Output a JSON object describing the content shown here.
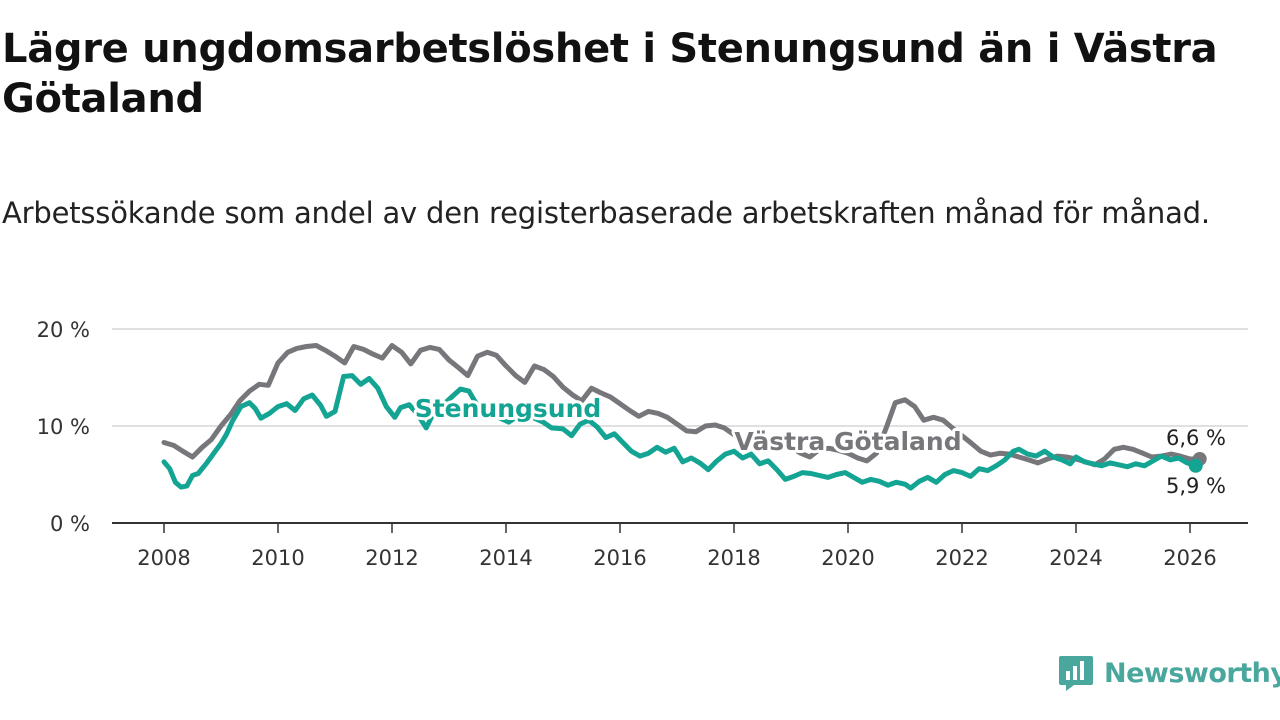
{
  "title": "Lägre ungdomsarbetslöshet i Stenungsund än i Västra Götaland",
  "subtitle": "Arbetssökande som andel av den registerbaserade arbetskraften månad för månad.",
  "brand": {
    "name": "Newsworthy",
    "color": "#4aa79d"
  },
  "chart_data": {
    "type": "line",
    "title": "Lägre ungdomsarbetslöshet i Stenungsund än i Västra Götaland",
    "xlabel": "",
    "ylabel": "",
    "xlim": [
      2007.5,
      2027.0
    ],
    "ylim": [
      0,
      20
    ],
    "grid": true,
    "y_ticks": [
      0,
      10,
      20
    ],
    "y_tick_labels": [
      "0 %",
      "10 %",
      "20 %"
    ],
    "x_ticks": [
      "2008",
      "2010",
      "2012",
      "2014",
      "2016",
      "2018",
      "2020",
      "2022",
      "2024",
      "2026"
    ],
    "series": [
      {
        "name": "Västra Götaland",
        "color": "#77767b",
        "end_label": "6,6 %",
        "points": [
          [
            2008.0,
            8.3
          ],
          [
            2008.17,
            8.0
          ],
          [
            2008.33,
            7.4
          ],
          [
            2008.5,
            6.8
          ],
          [
            2008.67,
            7.8
          ],
          [
            2008.83,
            8.6
          ],
          [
            2009.0,
            10.0
          ],
          [
            2009.17,
            11.2
          ],
          [
            2009.33,
            12.6
          ],
          [
            2009.5,
            13.6
          ],
          [
            2009.67,
            14.3
          ],
          [
            2009.83,
            14.2
          ],
          [
            2010.0,
            16.5
          ],
          [
            2010.17,
            17.6
          ],
          [
            2010.33,
            18.0
          ],
          [
            2010.5,
            18.2
          ],
          [
            2010.67,
            18.3
          ],
          [
            2010.83,
            17.8
          ],
          [
            2011.0,
            17.2
          ],
          [
            2011.17,
            16.5
          ],
          [
            2011.33,
            18.2
          ],
          [
            2011.5,
            17.9
          ],
          [
            2011.67,
            17.4
          ],
          [
            2011.83,
            17.0
          ],
          [
            2012.0,
            18.3
          ],
          [
            2012.17,
            17.6
          ],
          [
            2012.33,
            16.4
          ],
          [
            2012.5,
            17.8
          ],
          [
            2012.67,
            18.1
          ],
          [
            2012.83,
            17.9
          ],
          [
            2013.0,
            16.8
          ],
          [
            2013.17,
            16.0
          ],
          [
            2013.33,
            15.2
          ],
          [
            2013.5,
            17.2
          ],
          [
            2013.67,
            17.6
          ],
          [
            2013.83,
            17.3
          ],
          [
            2014.0,
            16.2
          ],
          [
            2014.17,
            15.2
          ],
          [
            2014.33,
            14.5
          ],
          [
            2014.5,
            16.2
          ],
          [
            2014.67,
            15.8
          ],
          [
            2014.83,
            15.1
          ],
          [
            2015.0,
            14.0
          ],
          [
            2015.17,
            13.2
          ],
          [
            2015.33,
            12.6
          ],
          [
            2015.5,
            13.9
          ],
          [
            2015.67,
            13.4
          ],
          [
            2015.83,
            13.0
          ],
          [
            2016.0,
            12.3
          ],
          [
            2016.17,
            11.6
          ],
          [
            2016.33,
            11.0
          ],
          [
            2016.5,
            11.5
          ],
          [
            2016.67,
            11.3
          ],
          [
            2016.83,
            10.9
          ],
          [
            2017.0,
            10.2
          ],
          [
            2017.17,
            9.5
          ],
          [
            2017.33,
            9.4
          ],
          [
            2017.5,
            10.0
          ],
          [
            2017.67,
            10.1
          ],
          [
            2017.83,
            9.8
          ],
          [
            2018.0,
            9.1
          ],
          [
            2018.17,
            8.5
          ],
          [
            2018.33,
            8.0
          ],
          [
            2018.5,
            8.7
          ],
          [
            2018.67,
            8.6
          ],
          [
            2018.83,
            8.3
          ],
          [
            2019.0,
            7.8
          ],
          [
            2019.17,
            7.2
          ],
          [
            2019.33,
            6.8
          ],
          [
            2019.5,
            7.6
          ],
          [
            2019.67,
            7.7
          ],
          [
            2019.83,
            7.5
          ],
          [
            2020.0,
            7.2
          ],
          [
            2020.17,
            6.7
          ],
          [
            2020.33,
            6.4
          ],
          [
            2020.5,
            7.2
          ],
          [
            2020.67,
            9.8
          ],
          [
            2020.83,
            12.4
          ],
          [
            2021.0,
            12.7
          ],
          [
            2021.17,
            12.0
          ],
          [
            2021.33,
            10.6
          ],
          [
            2021.5,
            10.9
          ],
          [
            2021.67,
            10.6
          ],
          [
            2021.83,
            9.8
          ],
          [
            2022.0,
            9.0
          ],
          [
            2022.17,
            8.2
          ],
          [
            2022.33,
            7.4
          ],
          [
            2022.5,
            7.0
          ],
          [
            2022.67,
            7.2
          ],
          [
            2022.83,
            7.1
          ],
          [
            2023.0,
            6.8
          ],
          [
            2023.17,
            6.5
          ],
          [
            2023.33,
            6.2
          ],
          [
            2023.5,
            6.6
          ],
          [
            2023.67,
            6.9
          ],
          [
            2023.83,
            6.8
          ],
          [
            2024.0,
            6.6
          ],
          [
            2024.17,
            6.3
          ],
          [
            2024.33,
            6.0
          ],
          [
            2024.5,
            6.6
          ],
          [
            2024.67,
            7.6
          ],
          [
            2024.83,
            7.8
          ],
          [
            2025.0,
            7.6
          ],
          [
            2025.17,
            7.2
          ],
          [
            2025.33,
            6.8
          ],
          [
            2025.5,
            6.9
          ],
          [
            2025.67,
            7.1
          ],
          [
            2025.83,
            6.9
          ],
          [
            2026.0,
            6.6
          ],
          [
            2026.17,
            6.6
          ]
        ]
      },
      {
        "name": "Stenungsund",
        "color": "#14a493",
        "end_label": "5,9 %",
        "points": [
          [
            2008.0,
            6.3
          ],
          [
            2008.1,
            5.6
          ],
          [
            2008.2,
            4.2
          ],
          [
            2008.3,
            3.7
          ],
          [
            2008.4,
            3.8
          ],
          [
            2008.5,
            4.9
          ],
          [
            2008.6,
            5.1
          ],
          [
            2008.75,
            6.2
          ],
          [
            2008.9,
            7.4
          ],
          [
            2009.0,
            8.2
          ],
          [
            2009.1,
            9.2
          ],
          [
            2009.2,
            10.5
          ],
          [
            2009.35,
            12.0
          ],
          [
            2009.5,
            12.4
          ],
          [
            2009.6,
            11.8
          ],
          [
            2009.7,
            10.8
          ],
          [
            2009.85,
            11.3
          ],
          [
            2010.0,
            12.0
          ],
          [
            2010.15,
            12.3
          ],
          [
            2010.3,
            11.6
          ],
          [
            2010.45,
            12.8
          ],
          [
            2010.6,
            13.2
          ],
          [
            2010.75,
            12.1
          ],
          [
            2010.85,
            11.0
          ],
          [
            2011.0,
            11.5
          ],
          [
            2011.15,
            15.1
          ],
          [
            2011.3,
            15.2
          ],
          [
            2011.45,
            14.3
          ],
          [
            2011.6,
            14.9
          ],
          [
            2011.75,
            13.9
          ],
          [
            2011.9,
            12.0
          ],
          [
            2012.05,
            10.9
          ],
          [
            2012.15,
            11.9
          ],
          [
            2012.3,
            12.2
          ],
          [
            2012.45,
            11.2
          ],
          [
            2012.6,
            9.8
          ],
          [
            2012.75,
            11.6
          ],
          [
            2012.9,
            12.2
          ],
          [
            2013.05,
            13.0
          ],
          [
            2013.2,
            13.8
          ],
          [
            2013.35,
            13.6
          ],
          [
            2013.5,
            12.1
          ],
          [
            2013.6,
            11.6
          ],
          [
            2013.75,
            11.3
          ],
          [
            2013.9,
            10.8
          ],
          [
            2014.05,
            10.4
          ],
          [
            2014.2,
            11.0
          ],
          [
            2014.35,
            11.2
          ],
          [
            2014.5,
            10.8
          ],
          [
            2014.65,
            10.4
          ],
          [
            2014.8,
            9.8
          ],
          [
            2015.0,
            9.7
          ],
          [
            2015.15,
            9.0
          ],
          [
            2015.3,
            10.2
          ],
          [
            2015.45,
            10.6
          ],
          [
            2015.6,
            9.9
          ],
          [
            2015.75,
            8.8
          ],
          [
            2015.9,
            9.2
          ],
          [
            2016.05,
            8.3
          ],
          [
            2016.2,
            7.4
          ],
          [
            2016.35,
            6.9
          ],
          [
            2016.5,
            7.2
          ],
          [
            2016.65,
            7.8
          ],
          [
            2016.8,
            7.3
          ],
          [
            2016.95,
            7.7
          ],
          [
            2017.1,
            6.3
          ],
          [
            2017.25,
            6.7
          ],
          [
            2017.4,
            6.2
          ],
          [
            2017.55,
            5.5
          ],
          [
            2017.7,
            6.4
          ],
          [
            2017.85,
            7.1
          ],
          [
            2018.0,
            7.4
          ],
          [
            2018.15,
            6.7
          ],
          [
            2018.3,
            7.1
          ],
          [
            2018.45,
            6.1
          ],
          [
            2018.6,
            6.4
          ],
          [
            2018.75,
            5.5
          ],
          [
            2018.9,
            4.5
          ],
          [
            2019.05,
            4.8
          ],
          [
            2019.2,
            5.2
          ],
          [
            2019.35,
            5.1
          ],
          [
            2019.5,
            4.9
          ],
          [
            2019.65,
            4.7
          ],
          [
            2019.8,
            5.0
          ],
          [
            2019.95,
            5.2
          ],
          [
            2020.1,
            4.7
          ],
          [
            2020.25,
            4.2
          ],
          [
            2020.4,
            4.5
          ],
          [
            2020.55,
            4.3
          ],
          [
            2020.7,
            3.9
          ],
          [
            2020.85,
            4.2
          ],
          [
            2021.0,
            4.0
          ],
          [
            2021.1,
            3.6
          ],
          [
            2021.25,
            4.3
          ],
          [
            2021.4,
            4.7
          ],
          [
            2021.55,
            4.2
          ],
          [
            2021.7,
            5.0
          ],
          [
            2021.85,
            5.4
          ],
          [
            2022.0,
            5.2
          ],
          [
            2022.15,
            4.8
          ],
          [
            2022.3,
            5.6
          ],
          [
            2022.45,
            5.4
          ],
          [
            2022.6,
            5.9
          ],
          [
            2022.75,
            6.5
          ],
          [
            2022.9,
            7.4
          ],
          [
            2023.0,
            7.6
          ],
          [
            2023.15,
            7.1
          ],
          [
            2023.3,
            6.9
          ],
          [
            2023.45,
            7.4
          ],
          [
            2023.6,
            6.8
          ],
          [
            2023.75,
            6.5
          ],
          [
            2023.9,
            6.1
          ],
          [
            2024.0,
            6.8
          ],
          [
            2024.15,
            6.3
          ],
          [
            2024.3,
            6.1
          ],
          [
            2024.45,
            5.9
          ],
          [
            2024.6,
            6.2
          ],
          [
            2024.75,
            6.0
          ],
          [
            2024.9,
            5.8
          ],
          [
            2025.05,
            6.1
          ],
          [
            2025.2,
            5.9
          ],
          [
            2025.35,
            6.4
          ],
          [
            2025.5,
            6.9
          ],
          [
            2025.65,
            6.5
          ],
          [
            2025.8,
            6.7
          ],
          [
            2025.95,
            6.2
          ],
          [
            2026.1,
            5.9
          ]
        ]
      }
    ]
  }
}
